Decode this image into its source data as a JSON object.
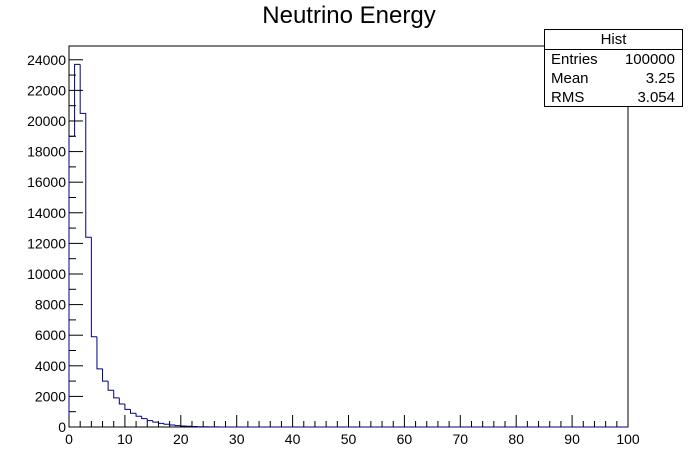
{
  "chart_data": {
    "type": "bar",
    "style": "step-histogram",
    "title": "Neutrino Energy",
    "xlabel": "",
    "ylabel": "",
    "xlim": [
      0,
      100
    ],
    "ylim": [
      0,
      24900
    ],
    "bin_width": 1,
    "line_color": "#000080",
    "x_ticks": [
      0,
      10,
      20,
      30,
      40,
      50,
      60,
      70,
      80,
      90,
      100
    ],
    "y_ticks": [
      0,
      2000,
      4000,
      6000,
      8000,
      10000,
      12000,
      14000,
      16000,
      18000,
      20000,
      22000,
      24000
    ],
    "values": [
      19000,
      23700,
      20500,
      12400,
      5900,
      3800,
      3000,
      2400,
      1900,
      1500,
      1150,
      900,
      700,
      550,
      420,
      320,
      240,
      180,
      130,
      90,
      65,
      45,
      30,
      20,
      14,
      9,
      6,
      4,
      3,
      2
    ],
    "legend": {
      "placement": "top-right",
      "name": "Hist",
      "rows": [
        {
          "label": "Entries",
          "value": "100000"
        },
        {
          "label": "Mean",
          "value": "3.25"
        },
        {
          "label": "RMS",
          "value": "3.054"
        }
      ]
    }
  }
}
